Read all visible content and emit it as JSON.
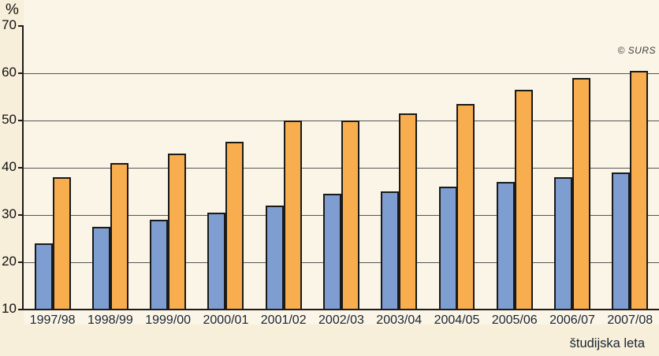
{
  "figure": {
    "unit_label": "%",
    "copyright": "© SURS",
    "x_axis_title": "študijska leta"
  },
  "chart_data": {
    "type": "bar",
    "title": "",
    "categories": [
      "1997/98",
      "1998/99",
      "1999/00",
      "2000/01",
      "2001/02",
      "2002/03",
      "2003/04",
      "2004/05",
      "2005/06",
      "2006/07",
      "2007/08"
    ],
    "series": [
      {
        "name": "blue-series",
        "color": "#7E9DD1",
        "values": [
          24,
          27.5,
          29,
          30.5,
          32,
          34.5,
          35,
          36,
          37,
          38,
          39
        ]
      },
      {
        "name": "orange-series",
        "color": "#F8AE4F",
        "values": [
          38,
          41,
          43,
          45.5,
          50,
          50,
          51.5,
          53.5,
          56.5,
          59,
          60.5
        ]
      }
    ],
    "xlabel": "študijska leta",
    "ylabel": "%",
    "ylim": [
      10,
      70
    ],
    "yticks": [
      10,
      20,
      30,
      40,
      50,
      60,
      70
    ],
    "grid": true,
    "legend": false,
    "annotations": [
      "© SURS"
    ]
  },
  "style": {
    "background": "#F8EFDB",
    "plot_background": "#FBF5E7",
    "grid_color": "#555555",
    "axis_color": "#1C1C1C",
    "bar_border_color": "#1A1A1A",
    "y_label_color": "#101010",
    "x_label_color": "#18242F",
    "copyright_color": "#3C3C3C"
  }
}
